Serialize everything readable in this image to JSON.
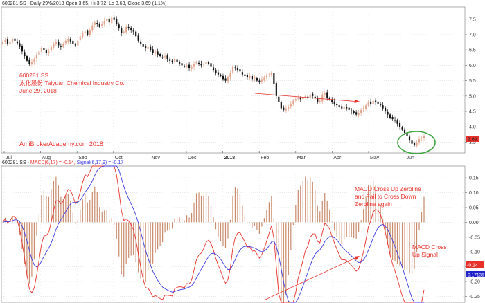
{
  "header": {
    "price_line": "600281.SS - Daily 29/6/2018 Open 3.65, Hi 3.72, Lo 3.63, Close 3.69 (1.1%)",
    "macd_prefix": "600281.SS - ",
    "macd_part": "MACD(6,17) = -0.14,",
    "signal_part": "Signal(6,17,9) = -0.17"
  },
  "annotations": {
    "symbol": "600281.SS",
    "company": "太化股份 Taiyuan Chemical Industry Co.",
    "date": "June 29, 2018",
    "watermark": "AmiBrokerAcademy.com  2018",
    "macd_note_lines": [
      "MACD Cross Up Zeroline",
      "and Fail to Cross Down",
      "Zeroline again"
    ],
    "signal_note_lines": [
      "MACD Cross",
      "Up Signal"
    ]
  },
  "colors": {
    "bull": "#e2a68e",
    "bear": "#111111",
    "macd": "#e8312a",
    "signal": "#3a3ae0",
    "annotation": "#e8312a",
    "circle": "#3aa33a",
    "grid": "#d3d3d3",
    "price_tag": "#e8312a",
    "signal_tag": "#2222cc"
  },
  "chart_data": [
    {
      "type": "candlestick",
      "x_ticks": [
        "Jul",
        "Aug",
        "Sep",
        "Oct",
        "Nov",
        "Dec",
        "2018",
        "Feb",
        "Mar",
        "Apr",
        "May",
        "Jun"
      ],
      "y_ticks": [
        "7.5",
        "7.0",
        "6.5",
        "6.0",
        "5.5",
        "5.0",
        "4.5",
        "4.0",
        "3.5"
      ],
      "ylim": [
        3.15,
        7.9
      ],
      "last_close_label": "3.69",
      "ohlc_note": "Open 3.65, Hi 3.72, Lo 3.63, Close 3.69",
      "closes": [
        6.75,
        6.82,
        6.7,
        6.78,
        6.85,
        6.8,
        6.72,
        6.6,
        6.45,
        6.3,
        6.15,
        6.05,
        6.1,
        6.2,
        6.35,
        6.45,
        6.55,
        6.5,
        6.4,
        6.45,
        6.6,
        6.7,
        6.75,
        6.65,
        6.6,
        6.7,
        6.8,
        6.85,
        6.78,
        6.7,
        6.65,
        6.8,
        6.95,
        7.05,
        7.1,
        7.0,
        7.15,
        7.3,
        7.4,
        7.35,
        7.25,
        7.35,
        7.45,
        7.5,
        7.4,
        7.55,
        7.48,
        7.35,
        7.2,
        7.05,
        7.1,
        7.25,
        7.2,
        7.15,
        7.1,
        6.95,
        6.8,
        6.7,
        6.6,
        6.55,
        6.6,
        6.5,
        6.4,
        6.45,
        6.35,
        6.3,
        6.25,
        6.3,
        6.2,
        6.15,
        6.1,
        6.2,
        6.1,
        6.05,
        6.0,
        5.95,
        6.0,
        5.9,
        5.95,
        6.05,
        6.1,
        6.05,
        6.0,
        6.05,
        6.1,
        6.05,
        5.95,
        5.85,
        5.75,
        5.7,
        5.65,
        5.55,
        5.5,
        5.6,
        5.75,
        5.95,
        5.9,
        5.85,
        5.8,
        5.7,
        5.65,
        5.6,
        5.65,
        5.55,
        5.6,
        5.5,
        5.45,
        5.55,
        5.6,
        5.65,
        5.7,
        5.75,
        5.4,
        5.0,
        4.8,
        4.6,
        4.55,
        4.6,
        4.65,
        4.75,
        4.85,
        4.9,
        4.95,
        4.9,
        4.95,
        5.0,
        4.95,
        5.05,
        5.0,
        4.95,
        4.8,
        4.85,
        5.05,
        5.1,
        4.95,
        4.9,
        4.8,
        4.75,
        4.7,
        4.65,
        4.6,
        4.65,
        4.6,
        4.55,
        4.5,
        4.45,
        4.4,
        4.45,
        4.55,
        4.6,
        4.7,
        4.8,
        4.75,
        4.85,
        4.8,
        4.75,
        4.7,
        4.6,
        4.5,
        4.4,
        4.3,
        4.25,
        4.2,
        4.1,
        4.0,
        3.9,
        3.8,
        3.7,
        3.55,
        3.45,
        3.4,
        3.5,
        3.6,
        3.65,
        3.69
      ]
    },
    {
      "type": "line",
      "indicator": "MACD(6,17) / Signal(6,17,9)",
      "y_ticks": [
        "0.15",
        "0.10",
        "0.05",
        "0.00",
        "-0.05",
        "-0.10",
        "-0.15",
        "-0.20",
        "-0.25"
      ],
      "ylim": [
        -0.27,
        0.19
      ],
      "macd_label": "-0.14",
      "signal_label": "-0.17135"
    }
  ]
}
